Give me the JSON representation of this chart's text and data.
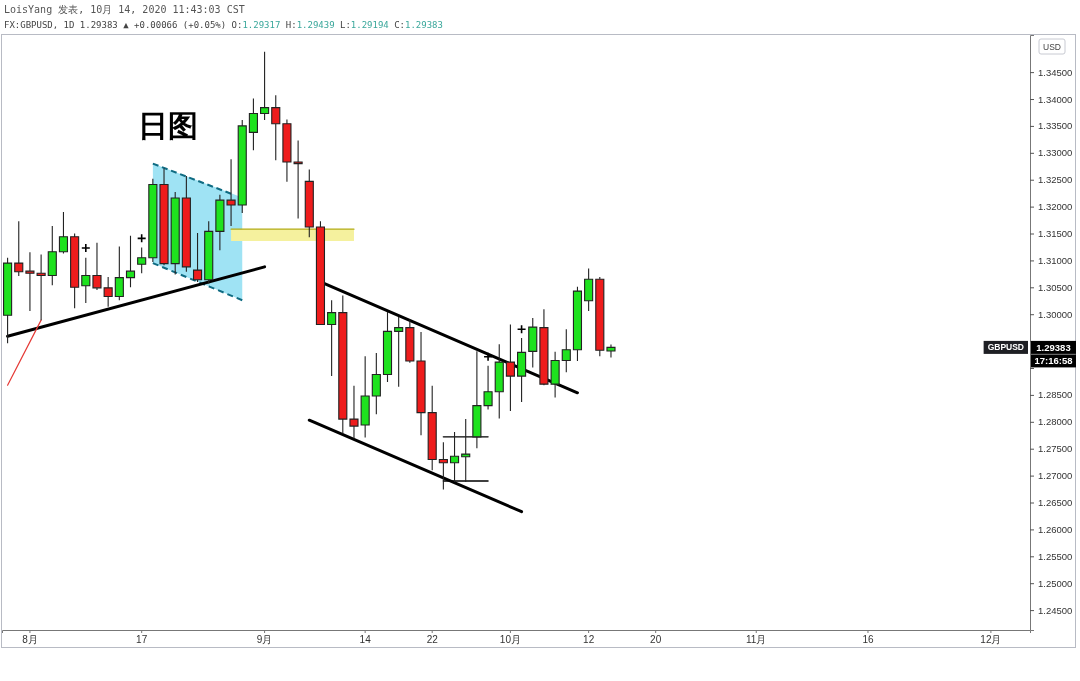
{
  "chart_data": {
    "type": "candlestick",
    "title": "LoisYang 发表, 10月 14, 2020 11:43:03 CST",
    "subtitle": "FX:GBPUSD, 1D 1.29383 ▲ +0.00066 (+0.05%) O:1.29317 H:1.29439 L:1.29194 C:1.29383",
    "categories": [
      null,
      null,
      "8月",
      null,
      null,
      null,
      null,
      null,
      null,
      null,
      null,
      null,
      "17",
      null,
      null,
      null,
      null,
      null,
      null,
      null,
      null,
      null,
      null,
      "9月",
      null,
      null,
      null,
      null,
      null,
      null,
      null,
      null,
      "14",
      null,
      null,
      null,
      null,
      null,
      "22",
      null,
      null,
      null,
      null,
      null,
      null,
      "10月",
      null,
      null,
      null,
      null,
      null,
      null,
      "12",
      null,
      null,
      null,
      null,
      null,
      "20",
      null,
      null,
      null,
      null,
      null,
      null,
      null,
      null,
      "11月",
      null,
      null,
      null,
      null,
      null,
      null,
      null,
      null,
      null,
      "16",
      null,
      null,
      null,
      null,
      null,
      null,
      null,
      null,
      null,
      null,
      "12月",
      null,
      null,
      null
    ],
    "ohlc": [
      [
        1.2998,
        1.3105,
        1.2946,
        1.3095
      ],
      [
        1.3095,
        1.3173,
        1.3071,
        1.3079
      ],
      [
        1.308,
        1.3115,
        1.3006,
        1.3076
      ],
      [
        1.3076,
        1.3111,
        1.2989,
        1.3072
      ],
      [
        1.3072,
        1.3164,
        1.3054,
        1.3116
      ],
      [
        1.3116,
        1.319,
        1.3113,
        1.3144
      ],
      [
        1.3144,
        1.315,
        1.3011,
        1.305
      ],
      [
        1.3053,
        1.3105,
        1.3021,
        1.3072
      ],
      [
        1.3072,
        1.3133,
        1.3045,
        1.3049
      ],
      [
        1.3049,
        1.3069,
        1.3014,
        1.3033
      ],
      [
        1.3033,
        1.3126,
        1.3026,
        1.3068
      ],
      [
        1.3068,
        1.3146,
        1.305,
        1.308
      ],
      [
        1.3093,
        1.3124,
        1.3076,
        1.3105
      ],
      [
        1.3105,
        1.3252,
        1.3097,
        1.3241
      ],
      [
        1.3241,
        1.3271,
        1.3091,
        1.3094
      ],
      [
        1.3094,
        1.3227,
        1.3074,
        1.3216
      ],
      [
        1.3216,
        1.3257,
        1.3079,
        1.3088
      ],
      [
        1.3082,
        1.3151,
        1.306,
        1.3064
      ],
      [
        1.3064,
        1.3173,
        1.3057,
        1.3154
      ],
      [
        1.3154,
        1.3222,
        1.3119,
        1.3212
      ],
      [
        1.3212,
        1.3288,
        1.3164,
        1.3203
      ],
      [
        1.3203,
        1.3361,
        1.3188,
        1.335
      ],
      [
        1.3338,
        1.3401,
        1.3305,
        1.3373
      ],
      [
        1.3373,
        1.3488,
        1.3361,
        1.3384
      ],
      [
        1.3384,
        1.3407,
        1.3286,
        1.3354
      ],
      [
        1.3354,
        1.3362,
        1.3246,
        1.3283
      ],
      [
        1.3283,
        1.3323,
        1.3178,
        1.328
      ],
      [
        1.3247,
        1.3269,
        1.3143,
        1.3162
      ],
      [
        1.3162,
        1.3173,
        1.298,
        1.2981
      ],
      [
        1.2981,
        1.3026,
        1.2885,
        1.3003
      ],
      [
        1.3003,
        1.3035,
        1.2778,
        1.2805
      ],
      [
        1.2805,
        1.2867,
        1.2769,
        1.2792
      ],
      [
        1.2794,
        1.2922,
        1.2771,
        1.2848
      ],
      [
        1.2848,
        1.2928,
        1.2814,
        1.2888
      ],
      [
        1.2888,
        1.3004,
        1.2874,
        1.2968
      ],
      [
        1.2968,
        1.2995,
        1.2865,
        1.2975
      ],
      [
        1.2975,
        1.299,
        1.291,
        1.2913
      ],
      [
        1.2913,
        1.2967,
        1.2775,
        1.2817
      ],
      [
        1.2817,
        1.2867,
        1.271,
        1.273
      ],
      [
        1.273,
        1.2762,
        1.2674,
        1.2724
      ],
      [
        1.2724,
        1.2781,
        1.2688,
        1.2736
      ],
      [
        1.2735,
        1.2805,
        1.2688,
        1.274
      ],
      [
        1.2772,
        1.2931,
        1.2751,
        1.283
      ],
      [
        1.283,
        1.2904,
        1.2823,
        1.2856
      ],
      [
        1.2856,
        1.2944,
        1.2806,
        1.2911
      ],
      [
        1.2911,
        1.2981,
        1.282,
        1.2885
      ],
      [
        1.2885,
        1.2956,
        1.2837,
        1.2929
      ],
      [
        1.2931,
        1.2993,
        1.2901,
        1.2976
      ],
      [
        1.2975,
        1.3009,
        1.2868,
        1.287
      ],
      [
        1.287,
        1.293,
        1.2845,
        1.2914
      ],
      [
        1.2914,
        1.2972,
        1.2892,
        1.2934
      ],
      [
        1.2934,
        1.3051,
        1.2913,
        1.3043
      ],
      [
        1.3025,
        1.3085,
        1.3006,
        1.3065
      ],
      [
        1.3065,
        1.3069,
        1.2922,
        1.2933
      ],
      [
        1.29317,
        1.29439,
        1.29194,
        1.29383
      ],
      null,
      null,
      null,
      null,
      null,
      null,
      null,
      null,
      null,
      null,
      null,
      null,
      null,
      null,
      null,
      null,
      null,
      null,
      null,
      null,
      null,
      null,
      null,
      null,
      null,
      null,
      null,
      null,
      null,
      null,
      null,
      null,
      null,
      null,
      null,
      null,
      null
    ],
    "colors": [
      "#1ee21e",
      "#ee1c1c",
      "#ee1c1c",
      "#ee1c1c",
      "#1ee21e",
      "#1ee21e",
      "#ee1c1c",
      "#1ee21e",
      "#ee1c1c",
      "#ee1c1c",
      "#1ee21e",
      "#1ee21e",
      "#1ee21e",
      "#1ee21e",
      "#ee1c1c",
      "#1ee21e",
      "#ee1c1c",
      "#ee1c1c",
      "#1ee21e",
      "#1ee21e",
      "#ee1c1c",
      "#1ee21e",
      "#1ee21e",
      "#1ee21e",
      "#ee1c1c",
      "#ee1c1c",
      "#ee1c1c",
      "#ee1c1c",
      "#ee1c1c",
      "#1ee21e",
      "#ee1c1c",
      "#ee1c1c",
      "#1ee21e",
      "#1ee21e",
      "#1ee21e",
      "#1ee21e",
      "#ee1c1c",
      "#ee1c1c",
      "#ee1c1c",
      "#ee1c1c",
      "#1ee21e",
      "#1ee21e",
      "#1ee21e",
      "#1ee21e",
      "#1ee21e",
      "#ee1c1c",
      "#1ee21e",
      "#1ee21e",
      "#ee1c1c",
      "#1ee21e",
      "#1ee21e",
      "#1ee21e",
      "#1ee21e",
      "#ee1c1c",
      "#1ee21e",
      null,
      null,
      null,
      null,
      null,
      null,
      null,
      null,
      null,
      null,
      null,
      null,
      null,
      null,
      null,
      null,
      null,
      null,
      null,
      null,
      null,
      null,
      null,
      null,
      null,
      null,
      null,
      null,
      null,
      null,
      null,
      null,
      null,
      null,
      null,
      null,
      null
    ],
    "ylim": [
      1.2413,
      1.3519
    ],
    "yticks": [
      {
        "value": 1.245,
        "label": "1.24500"
      },
      {
        "value": 1.25,
        "label": "1.25000"
      },
      {
        "value": 1.255,
        "label": "1.25500"
      },
      {
        "value": 1.26,
        "label": "1.26000"
      },
      {
        "value": 1.265,
        "label": "1.26500"
      },
      {
        "value": 1.27,
        "label": "1.27000"
      },
      {
        "value": 1.275,
        "label": "1.27500"
      },
      {
        "value": 1.28,
        "label": "1.28000"
      },
      {
        "value": 1.285,
        "label": "1.28500"
      },
      {
        "value": 1.29,
        "label": null
      },
      {
        "value": 1.295,
        "label": null
      },
      {
        "value": 1.3,
        "label": "1.30000"
      },
      {
        "value": 1.305,
        "label": "1.30500"
      },
      {
        "value": 1.31,
        "label": "1.31000"
      },
      {
        "value": 1.315,
        "label": "1.31500"
      },
      {
        "value": 1.32,
        "label": "1.32000"
      },
      {
        "value": 1.325,
        "label": "1.32500"
      },
      {
        "value": 1.33,
        "label": "1.33000"
      },
      {
        "value": 1.335,
        "label": "1.33500"
      },
      {
        "value": 1.34,
        "label": "1.34000"
      },
      {
        "value": 1.345,
        "label": "1.34500"
      }
    ],
    "series": [
      {
        "type": "line",
        "color": "#0f6b82",
        "line_style": "dashed",
        "values": [
          null,
          null,
          null,
          null,
          null,
          null,
          null,
          null,
          null,
          null,
          null,
          null,
          null,
          1.3095,
          null,
          null,
          null,
          null,
          null,
          null,
          null,
          1.3026,
          null,
          null,
          null,
          null,
          null,
          null,
          null,
          null,
          null,
          null,
          null,
          null,
          null,
          null,
          null,
          null,
          null,
          null,
          null,
          null,
          null,
          null,
          null,
          null,
          null,
          null,
          null,
          null,
          null,
          null,
          null,
          null,
          null,
          null,
          null,
          null,
          null,
          null,
          null,
          null,
          null,
          null,
          null,
          null,
          null,
          null,
          null,
          null,
          null,
          null,
          null,
          null,
          null,
          null,
          null,
          null,
          null,
          null,
          null,
          null,
          null,
          null,
          null,
          null,
          null,
          null,
          null,
          null,
          null,
          null
        ],
        "lower": [
          null,
          null,
          null,
          null,
          null,
          null,
          null,
          null,
          null,
          null,
          null,
          null,
          null,
          1.3095,
          null,
          null,
          null,
          null,
          null,
          null,
          null,
          1.3026,
          null,
          null,
          null,
          null,
          null,
          null,
          null,
          null,
          null,
          null,
          null,
          null,
          null,
          null,
          null,
          null,
          null,
          null,
          null,
          null,
          null,
          null,
          null,
          null,
          null,
          null,
          null,
          null,
          null,
          null,
          null,
          null,
          null,
          null,
          null,
          null,
          null,
          null,
          null,
          null,
          null,
          null,
          null,
          null,
          null,
          null,
          null,
          null,
          null,
          null,
          null,
          null,
          null,
          null,
          null,
          null,
          null,
          null,
          null,
          null,
          null,
          null,
          null,
          null,
          null,
          null,
          null,
          null,
          null,
          null
        ],
        "upper": [
          null,
          null,
          null,
          null,
          null,
          null,
          null,
          null,
          null,
          null,
          null,
          null,
          null,
          1.328,
          null,
          null,
          null,
          null,
          null,
          null,
          null,
          1.3217,
          null,
          null,
          null,
          null,
          null,
          null,
          null,
          null,
          null,
          null,
          null,
          null,
          null,
          null,
          null,
          null,
          null,
          null,
          null,
          null,
          null,
          null,
          null,
          null,
          null,
          null,
          null,
          null,
          null,
          null,
          null,
          null,
          null,
          null,
          null,
          null,
          null,
          null,
          null,
          null,
          null,
          null,
          null,
          null,
          null,
          null,
          null,
          null,
          null,
          null,
          null,
          null,
          null,
          null,
          null,
          null,
          null,
          null,
          null,
          null,
          null,
          null,
          null,
          null,
          null,
          null,
          null,
          null,
          null,
          null
        ]
      },
      {
        "type": "line",
        "color": "#b3ab12",
        "values": [
          null,
          null,
          null,
          null,
          null,
          null,
          null,
          null,
          null,
          null,
          null,
          null,
          null,
          null,
          null,
          null,
          null,
          null,
          null,
          null,
          1.3158,
          null,
          null,
          null,
          null,
          null,
          null,
          null,
          null,
          null,
          null,
          1.3158,
          null,
          null,
          null,
          null,
          null,
          null,
          null,
          null,
          null,
          null,
          null,
          null,
          null,
          null,
          null,
          null,
          null,
          null,
          null,
          null,
          null,
          null,
          null,
          null,
          null,
          null,
          null,
          null,
          null,
          null,
          null,
          null,
          null,
          null,
          null,
          null,
          null,
          null,
          null,
          null,
          null,
          null,
          null,
          null,
          null,
          null,
          null,
          null,
          null,
          null,
          null,
          null,
          null,
          null,
          null,
          null,
          null,
          null,
          null,
          null
        ],
        "lower": [
          null,
          null,
          null,
          null,
          null,
          null,
          null,
          null,
          null,
          null,
          null,
          null,
          null,
          null,
          null,
          null,
          null,
          null,
          null,
          null,
          1.3136,
          null,
          null,
          null,
          null,
          null,
          null,
          null,
          null,
          null,
          null,
          1.3136,
          null,
          null,
          null,
          null,
          null,
          null,
          null,
          null,
          null,
          null,
          null,
          null,
          null,
          null,
          null,
          null,
          null,
          null,
          null,
          null,
          null,
          null,
          null,
          null,
          null,
          null,
          null,
          null,
          null,
          null,
          null,
          null,
          null,
          null,
          null,
          null,
          null,
          null,
          null,
          null,
          null,
          null,
          null,
          null,
          null,
          null,
          null,
          null,
          null,
          null,
          null,
          null,
          null,
          null,
          null,
          null,
          null,
          null,
          null,
          null
        ],
        "upper": [
          null,
          null,
          null,
          null,
          null,
          null,
          null,
          null,
          null,
          null,
          null,
          null,
          null,
          null,
          null,
          null,
          null,
          null,
          null,
          null,
          1.3158,
          null,
          null,
          null,
          null,
          null,
          null,
          null,
          null,
          null,
          null,
          1.3158,
          null,
          null,
          null,
          null,
          null,
          null,
          null,
          null,
          null,
          null,
          null,
          null,
          null,
          null,
          null,
          null,
          null,
          null,
          null,
          null,
          null,
          null,
          null,
          null,
          null,
          null,
          null,
          null,
          null,
          null,
          null,
          null,
          null,
          null,
          null,
          null,
          null,
          null,
          null,
          null,
          null,
          null,
          null,
          null,
          null,
          null,
          null,
          null,
          null,
          null,
          null,
          null,
          null,
          null,
          null,
          null,
          null,
          null,
          null,
          null
        ]
      },
      {
        "type": "line",
        "color": "#000000",
        "values": [
          1.2959,
          null,
          null,
          null,
          null,
          null,
          null,
          null,
          null,
          null,
          null,
          null,
          null,
          null,
          null,
          null,
          null,
          null,
          null,
          null,
          null,
          null,
          null,
          1.3088,
          null,
          null,
          null,
          null,
          null,
          null,
          null,
          null,
          null,
          null,
          null,
          null,
          null,
          null,
          null,
          null,
          null,
          null,
          null,
          null,
          null,
          null,
          null,
          null,
          null,
          null,
          null,
          null,
          null,
          null,
          null,
          null,
          null,
          null,
          null,
          null,
          null,
          null,
          null,
          null,
          null,
          null,
          null,
          null,
          null,
          null,
          null,
          null,
          null,
          null,
          null,
          null,
          null,
          null,
          null,
          null,
          null,
          null,
          null,
          null,
          null,
          null,
          null,
          null,
          null,
          null,
          null,
          null
        ]
      },
      {
        "type": "line",
        "color": "#000000",
        "values": [
          null,
          null,
          null,
          null,
          null,
          null,
          null,
          null,
          null,
          null,
          null,
          null,
          null,
          null,
          null,
          null,
          null,
          null,
          null,
          null,
          null,
          null,
          null,
          null,
          null,
          null,
          null,
          null,
          1.306,
          null,
          null,
          null,
          null,
          null,
          null,
          null,
          null,
          null,
          null,
          null,
          null,
          null,
          null,
          null,
          null,
          null,
          null,
          null,
          null,
          null,
          null,
          1.2854,
          null,
          null,
          null,
          null,
          null,
          null,
          null,
          null,
          null,
          null,
          null,
          null,
          null,
          null,
          null,
          null,
          null,
          null,
          null,
          null,
          null,
          null,
          null,
          null,
          null,
          null,
          null,
          null,
          null,
          null,
          null,
          null,
          null,
          null,
          null,
          null,
          null,
          null,
          null,
          null
        ]
      },
      {
        "type": "line",
        "color": "#000000",
        "values": [
          null,
          null,
          null,
          null,
          null,
          null,
          null,
          null,
          null,
          null,
          null,
          null,
          null,
          null,
          null,
          null,
          null,
          null,
          null,
          null,
          null,
          null,
          null,
          null,
          null,
          null,
          null,
          1.2803,
          null,
          null,
          null,
          null,
          null,
          null,
          null,
          null,
          null,
          null,
          null,
          null,
          null,
          null,
          null,
          null,
          null,
          null,
          1.2633,
          null,
          null,
          null,
          null,
          null,
          null,
          null,
          null,
          null,
          null,
          null,
          null,
          null,
          null,
          null,
          null,
          null,
          null,
          null,
          null,
          null,
          null,
          null,
          null,
          null,
          null,
          null,
          null,
          null,
          null,
          null,
          null,
          null,
          null,
          null,
          null,
          null,
          null,
          null,
          null,
          null,
          null,
          null,
          null,
          null
        ]
      },
      {
        "type": "line",
        "color": "#e53935",
        "values": [
          1.2868,
          null,
          null,
          1.2989,
          null,
          null,
          null,
          null,
          null,
          null,
          null,
          null,
          null,
          null,
          null,
          null,
          null,
          null,
          null,
          null,
          null,
          null,
          null,
          null,
          null,
          null,
          null,
          null,
          null,
          null,
          null,
          null,
          null,
          null,
          null,
          null,
          null,
          null,
          null,
          null,
          null,
          null,
          null,
          null,
          null,
          null,
          null,
          null,
          null,
          null,
          null,
          null,
          null,
          null,
          null,
          null,
          null,
          null,
          null,
          null,
          null,
          null,
          null,
          null,
          null,
          null,
          null,
          null,
          null,
          null,
          null,
          null,
          null,
          null,
          null,
          null,
          null,
          null,
          null,
          null,
          null,
          null,
          null,
          null,
          null,
          null,
          null,
          null,
          null,
          null,
          null,
          null
        ]
      },
      {
        "type": "line",
        "color": "#0f6b82",
        "line_style": "dashed",
        "values": [
          null,
          null,
          null,
          null,
          null,
          null,
          null,
          null,
          null,
          null,
          null,
          null,
          null,
          1.328,
          null,
          null,
          null,
          null,
          null,
          null,
          1.3224,
          null,
          null,
          null,
          null,
          null,
          null,
          null,
          null,
          null,
          null,
          null,
          null,
          null,
          null,
          null,
          null,
          null,
          null,
          null,
          null,
          null,
          null,
          null,
          null,
          null,
          null,
          null,
          null,
          null,
          null,
          null,
          null,
          null,
          null,
          null,
          null,
          null,
          null,
          null,
          null,
          null,
          null,
          null,
          null,
          null,
          null,
          null,
          null,
          null,
          null,
          null,
          null,
          null,
          null,
          null,
          null,
          null,
          null,
          null,
          null,
          null,
          null,
          null,
          null,
          null,
          null,
          null,
          null,
          null,
          null,
          null
        ]
      },
      {
        "type": "line",
        "color": "#000000",
        "values": [
          null,
          null,
          null,
          null,
          null,
          null,
          null,
          null,
          null,
          null,
          null,
          null,
          null,
          null,
          null,
          null,
          null,
          null,
          null,
          null,
          null,
          null,
          null,
          null,
          null,
          null,
          null,
          null,
          null,
          null,
          null,
          null,
          null,
          null,
          null,
          null,
          null,
          null,
          null,
          1.2772,
          null,
          null,
          null,
          1.2772,
          null,
          null,
          null,
          null,
          null,
          null,
          null,
          null,
          null,
          null,
          null,
          null,
          null,
          null,
          null,
          null,
          null,
          null,
          null,
          null,
          null,
          null,
          null,
          null,
          null,
          null,
          null,
          null,
          null,
          null,
          null,
          null,
          null,
          null,
          null,
          null,
          null,
          null,
          null,
          null,
          null,
          null,
          null,
          null,
          null,
          null,
          null,
          null
        ]
      },
      {
        "type": "line",
        "color": "#000000",
        "values": [
          null,
          null,
          null,
          null,
          null,
          null,
          null,
          null,
          null,
          null,
          null,
          null,
          null,
          null,
          null,
          null,
          null,
          null,
          null,
          null,
          null,
          null,
          null,
          null,
          null,
          null,
          null,
          null,
          null,
          null,
          null,
          null,
          null,
          null,
          null,
          null,
          null,
          null,
          null,
          1.269,
          null,
          null,
          null,
          1.269,
          null,
          null,
          null,
          null,
          null,
          null,
          null,
          null,
          null,
          null,
          null,
          null,
          null,
          null,
          null,
          null,
          null,
          null,
          null,
          null,
          null,
          null,
          null,
          null,
          null,
          null,
          null,
          null,
          null,
          null,
          null,
          null,
          null,
          null,
          null,
          null,
          null,
          null,
          null,
          null,
          null,
          null,
          null,
          null,
          null,
          null,
          null,
          null
        ]
      },
      {
        "type": "scatter",
        "color": "#000000",
        "marker": "cross",
        "values": [
          null,
          null,
          null,
          null,
          null,
          null,
          null,
          1.3123,
          null,
          null,
          null,
          null,
          1.3141,
          null,
          null,
          null,
          null,
          null,
          null,
          null,
          null,
          null,
          null,
          null,
          null,
          null,
          null,
          null,
          null,
          null,
          null,
          null,
          null,
          null,
          null,
          null,
          null,
          null,
          null,
          null,
          null,
          null,
          null,
          1.2921,
          null,
          null,
          1.2972,
          null,
          null,
          null,
          null,
          null,
          null,
          null,
          null,
          null,
          null,
          null,
          null,
          null,
          null,
          null,
          null,
          null,
          null,
          null,
          null,
          null,
          null,
          null,
          null,
          null,
          null,
          null,
          null,
          null,
          null,
          null,
          null,
          null,
          null,
          null,
          null,
          null,
          null,
          null,
          null,
          null,
          null,
          null,
          null,
          null
        ]
      }
    ],
    "annotations": [
      "日图",
      "USD",
      "GBPUSD",
      "1.29383",
      "17:16:58"
    ]
  }
}
